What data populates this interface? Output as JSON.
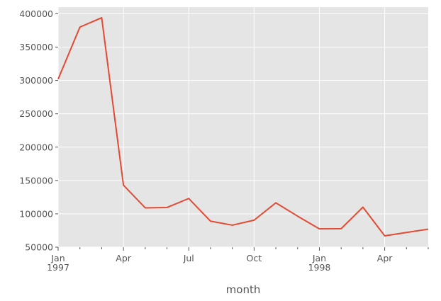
{
  "chart_data": {
    "type": "line",
    "xlabel": "month",
    "ylabel": "",
    "title": "",
    "x": [
      "1997-01",
      "1997-02",
      "1997-03",
      "1997-04",
      "1997-05",
      "1997-06",
      "1997-07",
      "1997-08",
      "1997-09",
      "1997-10",
      "1997-11",
      "1997-12",
      "1998-01",
      "1998-02",
      "1998-03",
      "1998-04",
      "1998-05",
      "1998-06"
    ],
    "series": [
      {
        "values": [
          302000,
          380000,
          394000,
          143000,
          109000,
          109500,
          123000,
          89000,
          83000,
          90500,
          116500,
          96500,
          77500,
          77800,
          110000,
          67000,
          72000,
          77000
        ]
      }
    ],
    "ylim": [
      50000,
      410000
    ],
    "xlim": [
      "1997-01",
      "1998-06"
    ],
    "yticks": [
      "50000",
      "100000",
      "150000",
      "200000",
      "250000",
      "300000",
      "350000",
      "400000"
    ],
    "xticks": [
      {
        "month": "1997-01",
        "label": "Jan",
        "sublabel": "1997"
      },
      {
        "month": "1997-04",
        "label": "Apr",
        "sublabel": ""
      },
      {
        "month": "1997-07",
        "label": "Jul",
        "sublabel": ""
      },
      {
        "month": "1997-10",
        "label": "Oct",
        "sublabel": ""
      },
      {
        "month": "1998-01",
        "label": "Jan",
        "sublabel": "1998"
      },
      {
        "month": "1998-04",
        "label": "Apr",
        "sublabel": ""
      }
    ],
    "grid": true,
    "colors": {
      "line": "#E24A33",
      "background": "#E5E5E5",
      "grid": "#FFFFFF",
      "text": "#555555"
    }
  }
}
